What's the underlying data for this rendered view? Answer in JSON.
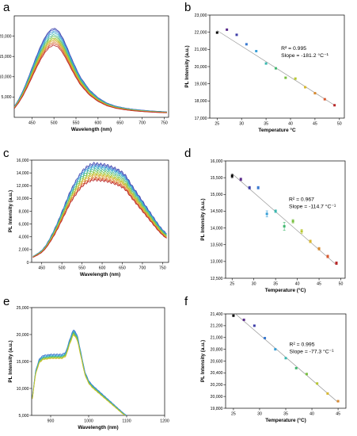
{
  "chart_data": [
    {
      "panel": "a",
      "type": "line",
      "xlabel": "Wavelength (nm)",
      "ylabel": "PL Intensity (a.u.)",
      "xlim": [
        410,
        760
      ],
      "ylim": [
        0,
        25000
      ],
      "xticks": [
        450,
        500,
        550,
        600,
        650,
        700,
        750
      ],
      "yticks": [
        5000,
        10000,
        15000,
        20000
      ],
      "ytick_labels": [
        "5,000",
        "10,000",
        "15,000",
        "20,000"
      ],
      "curve_shape": {
        "x": [
          410,
          420,
          430,
          440,
          450,
          460,
          470,
          480,
          490,
          500,
          510,
          520,
          530,
          540,
          550,
          560,
          580,
          600,
          620,
          640,
          660,
          680,
          700,
          720,
          740,
          756
        ],
        "rel": [
          0.12,
          0.2,
          0.3,
          0.42,
          0.55,
          0.68,
          0.8,
          0.9,
          0.97,
          1.0,
          0.97,
          0.89,
          0.78,
          0.66,
          0.55,
          0.45,
          0.31,
          0.22,
          0.16,
          0.125,
          0.105,
          0.09,
          0.08,
          0.072,
          0.066,
          0.062
        ]
      },
      "peak_values": [
        22000,
        21700,
        21300,
        20900,
        20400,
        20000,
        19600,
        19300,
        19000,
        18600,
        18200,
        17800
      ],
      "series_colors": [
        "#3d3da8",
        "#4a66c8",
        "#3a90d8",
        "#3ab0c8",
        "#42b890",
        "#6cc050",
        "#a0c838",
        "#c8c030",
        "#d8a830",
        "#d88030",
        "#d85030",
        "#b82828"
      ]
    },
    {
      "panel": "b",
      "type": "scatter",
      "xlabel": "Temperature °C",
      "ylabel": "PL Intensity (a.u.)",
      "xlim": [
        23.5,
        51
      ],
      "ylim": [
        17000,
        23000
      ],
      "xticks": [
        25,
        30,
        35,
        40,
        45,
        50
      ],
      "yticks": [
        17000,
        18000,
        19000,
        20000,
        21000,
        22000,
        23000
      ],
      "ytick_labels": [
        "17,000",
        "18,000",
        "19,000",
        "20,000",
        "21,000",
        "22,000",
        "23,000"
      ],
      "x": [
        25,
        27,
        29,
        31,
        33,
        35,
        37,
        39,
        41,
        43,
        45,
        47,
        49
      ],
      "y": [
        21980,
        22150,
        21850,
        21300,
        20900,
        20180,
        19900,
        19350,
        19300,
        18800,
        18450,
        18100,
        17750
      ],
      "point_colors": [
        "#000000",
        "#5a2a8a",
        "#3d3da8",
        "#3a7ad0",
        "#3aa0d8",
        "#3ab8b0",
        "#42b870",
        "#78c040",
        "#b8c830",
        "#d8b830",
        "#d88a30",
        "#d85a30",
        "#b82828"
      ],
      "fit_line": {
        "x": [
          25,
          49
        ],
        "y": [
          22100,
          17750
        ]
      },
      "annotation_r2": "R² = 0.995",
      "annotation_slope": "Slope = -181.2 °C⁻¹"
    },
    {
      "panel": "c",
      "type": "line",
      "xlabel": "Wavelength (nm)",
      "ylabel": "PL Intensity (a.u.)",
      "xlim": [
        425,
        765
      ],
      "ylim": [
        0,
        16000
      ],
      "xticks": [
        450,
        500,
        550,
        600,
        650,
        700,
        750
      ],
      "yticks": [
        0,
        2000,
        4000,
        6000,
        8000,
        10000,
        12000,
        14000,
        16000
      ],
      "ytick_labels": [
        "0",
        "2,000",
        "4,000",
        "6,000",
        "8,000",
        "10,000",
        "12,000",
        "14,000",
        "16,000"
      ],
      "curve_shape": {
        "x": [
          428,
          440,
          450,
          460,
          470,
          480,
          490,
          500,
          510,
          520,
          530,
          540,
          550,
          560,
          570,
          580,
          590,
          600,
          610,
          620,
          630,
          640,
          650,
          660,
          670,
          680,
          690,
          700,
          710,
          720,
          730,
          740,
          750,
          760
        ],
        "rel": [
          0.06,
          0.09,
          0.12,
          0.17,
          0.24,
          0.32,
          0.41,
          0.51,
          0.61,
          0.71,
          0.79,
          0.86,
          0.92,
          0.96,
          0.985,
          1.0,
          0.995,
          0.99,
          0.985,
          0.97,
          0.955,
          0.935,
          0.91,
          0.87,
          0.8,
          0.74,
          0.68,
          0.62,
          0.56,
          0.5,
          0.44,
          0.38,
          0.33,
          0.29
        ]
      },
      "peak_values": [
        15500,
        15300,
        15100,
        14900,
        14600,
        14300,
        14000,
        13800,
        13600,
        13300,
        13100,
        12900
      ],
      "series_colors": [
        "#3d3da8",
        "#4a66c8",
        "#3a90d8",
        "#3ab0c8",
        "#42b890",
        "#6cc050",
        "#a0c838",
        "#c8c030",
        "#d8a830",
        "#d88030",
        "#d85030",
        "#b82828"
      ]
    },
    {
      "panel": "d",
      "type": "scatter",
      "xlabel": "Temperature (°C)",
      "ylabel": "PL Intensity (a.u.)",
      "xlim": [
        23.5,
        51
      ],
      "ylim": [
        12500,
        16000
      ],
      "xticks": [
        25,
        30,
        35,
        40,
        45,
        50
      ],
      "yticks": [
        12500,
        13000,
        13500,
        14000,
        14500,
        15000,
        15500,
        16000
      ],
      "ytick_labels": [
        "12,500",
        "13,000",
        "13,500",
        "14,000",
        "14,500",
        "15,000",
        "15,500",
        "16,000"
      ],
      "x": [
        25,
        27,
        29,
        31,
        33,
        35,
        37,
        39,
        41,
        43,
        45,
        47,
        49
      ],
      "y": [
        15550,
        15450,
        15200,
        15200,
        14420,
        14500,
        14050,
        14200,
        13900,
        13600,
        13380,
        13150,
        12950
      ],
      "error": [
        50,
        40,
        40,
        40,
        90,
        40,
        120,
        50,
        60,
        40,
        40,
        40,
        40
      ],
      "point_colors": [
        "#000000",
        "#5a2a8a",
        "#3d3da8",
        "#3a7ad0",
        "#3aa0d8",
        "#3ab8b0",
        "#42b870",
        "#78c040",
        "#b8c830",
        "#d8b830",
        "#d88a30",
        "#d85a30",
        "#b82828"
      ],
      "fit_line": {
        "x": [
          25,
          49
        ],
        "y": [
          15620,
          12900
        ]
      },
      "annotation_r2": "R² = 0.967",
      "annotation_slope": "Slope = -114.7 °C⁻¹"
    },
    {
      "panel": "e",
      "type": "line",
      "xlabel": "Wavelength (nm)",
      "ylabel": "PL Intensity (a.u.)",
      "xlim": [
        850,
        1200
      ],
      "ylim": [
        5000,
        25000
      ],
      "xticks": [
        900,
        1000,
        1100,
        1200
      ],
      "yticks": [
        5000,
        10000,
        15000,
        20000,
        25000
      ],
      "ytick_labels": [
        "5,000",
        "10,000",
        "15,000",
        "20,000",
        "25,000"
      ],
      "curve_shape": {
        "x": [
          852,
          860,
          870,
          880,
          890,
          900,
          910,
          920,
          930,
          940,
          950,
          960,
          970,
          980,
          990,
          1000,
          1010,
          1020,
          1030,
          1040,
          1050,
          1060,
          1070,
          1080,
          1090,
          1100,
          1110,
          1120,
          1130,
          1140,
          1150
        ],
        "rel": [
          0.4,
          0.62,
          0.73,
          0.76,
          0.765,
          0.77,
          0.77,
          0.77,
          0.77,
          0.79,
          0.9,
          0.99,
          0.94,
          0.78,
          0.62,
          0.54,
          0.5,
          0.47,
          0.44,
          0.41,
          0.38,
          0.35,
          0.32,
          0.29,
          0.26,
          0.235,
          0.2,
          0.165,
          0.13,
          0.095,
          0.06
        ]
      },
      "peak_values": [
        21200,
        21000,
        20800,
        20650,
        20500,
        20350,
        20200
      ],
      "series_colors": [
        "#3a70c8",
        "#3a90d8",
        "#3ab0c8",
        "#42b890",
        "#78c040",
        "#b0c838",
        "#d0c030"
      ]
    },
    {
      "panel": "f",
      "type": "scatter",
      "xlabel": "Temperature (°C)",
      "ylabel": "PL Intensity (a.u.)",
      "xlim": [
        23.5,
        46.5
      ],
      "ylim": [
        19800,
        21400
      ],
      "xticks": [
        25,
        30,
        35,
        40,
        45
      ],
      "yticks": [
        19800,
        20000,
        20200,
        20400,
        20600,
        20800,
        21000,
        21200,
        21400
      ],
      "ytick_labels": [
        "19,800",
        "20,000",
        "20,200",
        "20,400",
        "20,600",
        "20,800",
        "21,000",
        "21,200",
        "21,400"
      ],
      "x": [
        25,
        27,
        29,
        31,
        33,
        35,
        37,
        39,
        41,
        43,
        45
      ],
      "y": [
        21370,
        21300,
        21200,
        20990,
        20800,
        20650,
        20480,
        20380,
        20220,
        20050,
        19920
      ],
      "point_colors": [
        "#000000",
        "#5a2a8a",
        "#3d3da8",
        "#3a7ad0",
        "#3aa0d8",
        "#3ab8b0",
        "#42b870",
        "#78c040",
        "#b8c830",
        "#d8b830",
        "#d88a30"
      ],
      "fit_line": {
        "x": [
          25,
          45
        ],
        "y": [
          21430,
          19900
        ]
      },
      "annotation_r2": "R² = 0.995",
      "annotation_slope": "Slope = -77.3 °C⁻¹"
    }
  ]
}
